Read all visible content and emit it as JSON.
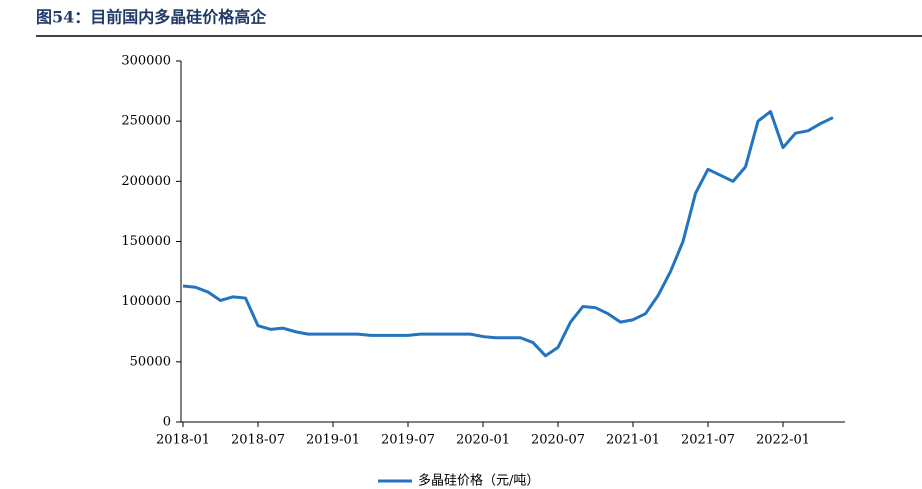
{
  "chart_data": {
    "type": "line",
    "title": "图54：目前国内多晶硅价格高企",
    "x": [
      "2018-01",
      "2018-02",
      "2018-03",
      "2018-04",
      "2018-05",
      "2018-06",
      "2018-07",
      "2018-08",
      "2018-09",
      "2018-10",
      "2018-11",
      "2018-12",
      "2019-01",
      "2019-02",
      "2019-03",
      "2019-04",
      "2019-05",
      "2019-06",
      "2019-07",
      "2019-08",
      "2019-09",
      "2019-10",
      "2019-11",
      "2019-12",
      "2020-01",
      "2020-02",
      "2020-03",
      "2020-04",
      "2020-05",
      "2020-06",
      "2020-07",
      "2020-08",
      "2020-09",
      "2020-10",
      "2020-11",
      "2020-12",
      "2021-01",
      "2021-02",
      "2021-03",
      "2021-04",
      "2021-05",
      "2021-06",
      "2021-07",
      "2021-08",
      "2021-09",
      "2021-10",
      "2021-11",
      "2021-12",
      "2022-01",
      "2022-02",
      "2022-03",
      "2022-04",
      "2022-05"
    ],
    "series": [
      {
        "name": "多晶硅价格（元/吨）",
        "color": "#2274c0",
        "values": [
          113000,
          112000,
          108000,
          101000,
          104000,
          103000,
          80000,
          77000,
          78000,
          75000,
          73000,
          73000,
          73000,
          73000,
          73000,
          72000,
          72000,
          72000,
          72000,
          73000,
          73000,
          73000,
          73000,
          73000,
          71000,
          70000,
          70000,
          70000,
          66000,
          55000,
          62000,
          83000,
          96000,
          95000,
          90000,
          83000,
          85000,
          90000,
          105000,
          125000,
          150000,
          190000,
          210000,
          205000,
          200000,
          212000,
          250000,
          258000,
          228000,
          240000,
          242000,
          248000,
          253000
        ]
      }
    ],
    "xticks": [
      "2018-01",
      "2018-07",
      "2019-01",
      "2019-07",
      "2020-01",
      "2020-07",
      "2021-01",
      "2021-07",
      "2022-01"
    ],
    "ylim": [
      0,
      300000
    ],
    "yticks": [
      0,
      50000,
      100000,
      150000,
      200000,
      250000,
      300000
    ],
    "grid": false
  }
}
